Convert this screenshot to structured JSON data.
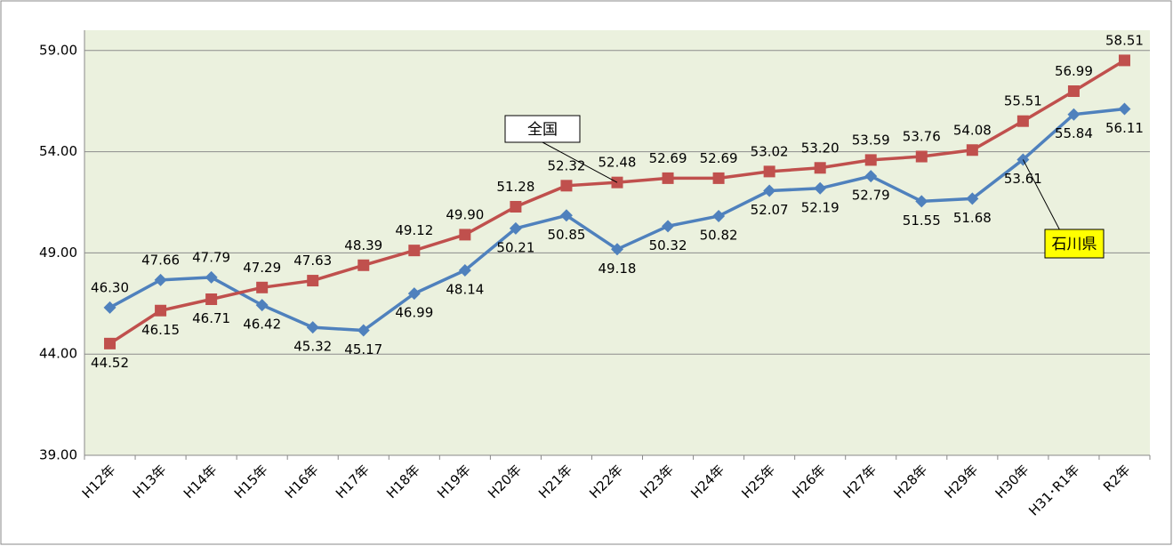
{
  "chart_data": {
    "type": "line",
    "categories": [
      "H12年",
      "H13年",
      "H14年",
      "H15年",
      "H16年",
      "H17年",
      "H18年",
      "H19年",
      "H20年",
      "H21年",
      "H22年",
      "H23年",
      "H24年",
      "H25年",
      "H26年",
      "H27年",
      "H28年",
      "H29年",
      "H30年",
      "H31･R1年",
      "R2年"
    ],
    "series": [
      {
        "name": "石川県",
        "color": "#4f81bd",
        "values": [
          46.3,
          47.66,
          47.79,
          46.42,
          45.32,
          45.17,
          46.99,
          48.14,
          50.21,
          50.85,
          49.18,
          50.32,
          50.82,
          52.07,
          52.19,
          52.79,
          51.55,
          51.68,
          53.61,
          55.84,
          56.11
        ],
        "value_labels": [
          "46.30",
          "47.66",
          "47.79",
          "46.42",
          "45.32",
          "45.17",
          "46.99",
          "48.14",
          "50.21",
          "50.85",
          "49.18",
          "50.32",
          "50.82",
          "52.07",
          "52.19",
          "52.79",
          "51.55",
          "51.68",
          "53.61",
          "55.84",
          "56.11"
        ]
      },
      {
        "name": "全国",
        "color": "#c0504d",
        "values": [
          44.52,
          46.15,
          46.71,
          47.29,
          47.63,
          48.39,
          49.12,
          49.9,
          51.28,
          52.32,
          52.48,
          52.69,
          52.69,
          53.02,
          53.2,
          53.59,
          53.76,
          54.08,
          55.51,
          56.99,
          58.51
        ],
        "value_labels": [
          "44.52",
          "46.15",
          "46.71",
          "47.29",
          "47.63",
          "48.39",
          "49.12",
          "49.90",
          "51.28",
          "52.32",
          "52.48",
          "52.69",
          "52.69",
          "53.02",
          "53.20",
          "53.59",
          "53.76",
          "54.08",
          "55.51",
          "56.99",
          "58.51"
        ]
      }
    ],
    "ylim": [
      39,
      60
    ],
    "yticks": [
      {
        "value": 39,
        "label": "39.00"
      },
      {
        "value": 44,
        "label": "44.00"
      },
      {
        "value": 49,
        "label": "49.00"
      },
      {
        "value": 54,
        "label": "54.00"
      },
      {
        "value": 59,
        "label": "59.00"
      }
    ],
    "grid": true
  }
}
